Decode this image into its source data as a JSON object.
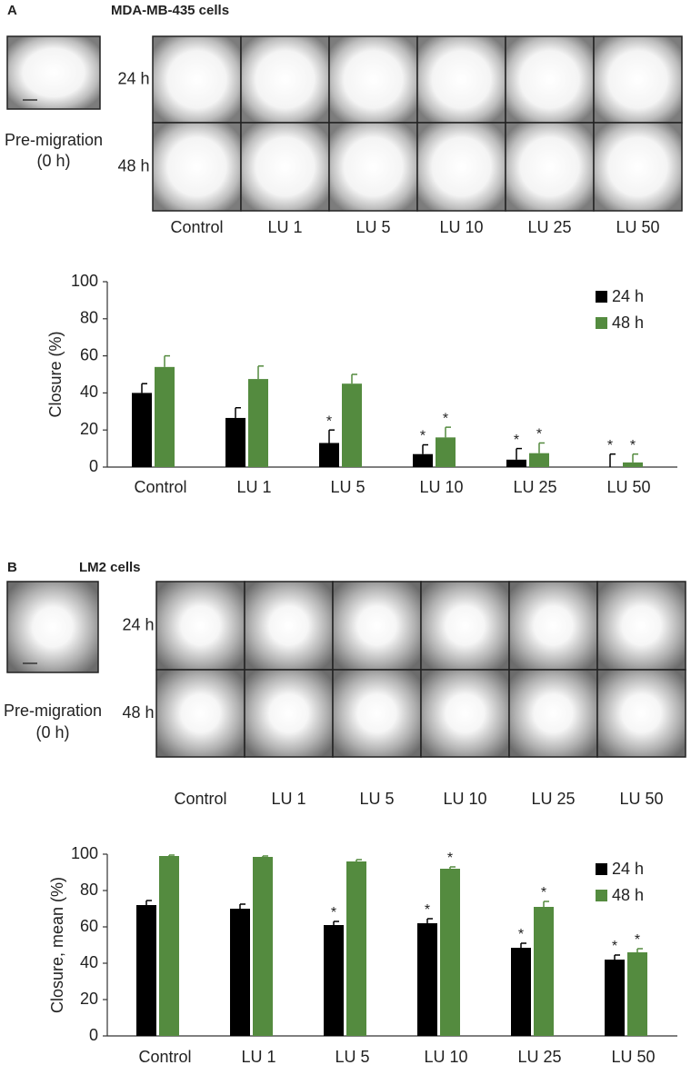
{
  "panels": [
    {
      "label": "A",
      "title": "MDA-MB-435 cells",
      "pre_label": "Pre-migration",
      "pre_time": "(0 h)",
      "row_labels": [
        "24 h",
        "48 h"
      ],
      "column_labels": [
        "Control",
        "LU 1",
        "LU 5",
        "LU 10",
        "LU 25",
        "LU 50"
      ]
    },
    {
      "label": "B",
      "title": "LM2 cells",
      "pre_label": "Pre-migration",
      "pre_time": "(0 h)",
      "row_labels": [
        "24 h",
        "48 h"
      ],
      "column_labels": [
        "Control",
        "LU 1",
        "LU 5",
        "LU 10",
        "LU 25",
        "LU 50"
      ]
    }
  ],
  "chart_data": [
    {
      "type": "bar",
      "y_label": "Closure (%)",
      "categories": [
        "Control",
        "LU 1",
        "LU 5",
        "LU 10",
        "LU 25",
        "LU 50"
      ],
      "series": [
        {
          "name": "24 h",
          "color": "#000000",
          "values": [
            40,
            26.5,
            13,
            7,
            4,
            0
          ],
          "errors": [
            5,
            5.5,
            7,
            5,
            6,
            7
          ]
        },
        {
          "name": "48 h",
          "color": "#548b3f",
          "values": [
            54,
            47.5,
            45,
            16,
            7.5,
            2.5
          ],
          "errors": [
            6,
            7,
            5,
            5.5,
            5.5,
            4.5
          ]
        }
      ],
      "ylim": [
        0,
        100
      ],
      "yticks": [
        0,
        20,
        40,
        60,
        80,
        100
      ],
      "legend": "upper right",
      "annotations": [
        {
          "text": "*",
          "category": "LU 5",
          "series": "24 h"
        },
        {
          "text": "*",
          "category": "LU 10",
          "series": "24 h"
        },
        {
          "text": "*",
          "category": "LU 10",
          "series": "48 h"
        },
        {
          "text": "*",
          "category": "LU 25",
          "series": "24 h"
        },
        {
          "text": "*",
          "category": "LU 25",
          "series": "48 h"
        },
        {
          "text": "*",
          "category": "LU 50",
          "series": "24 h"
        },
        {
          "text": "*",
          "category": "LU 50",
          "series": "48 h"
        }
      ]
    },
    {
      "type": "bar",
      "y_label": "Closure, mean (%)",
      "categories": [
        "Control",
        "LU 1",
        "LU 5",
        "LU 10",
        "LU 25",
        "LU 50"
      ],
      "series": [
        {
          "name": "24 h",
          "color": "#000000",
          "values": [
            72,
            70,
            61,
            62,
            48.5,
            42
          ],
          "errors": [
            2.5,
            2.5,
            2,
            2.5,
            2.5,
            2.5
          ]
        },
        {
          "name": "48 h",
          "color": "#548b3f",
          "values": [
            99,
            98.5,
            96,
            92,
            71,
            46
          ],
          "errors": [
            0.5,
            0.5,
            1,
            1,
            3,
            2
          ]
        }
      ],
      "ylim": [
        0,
        100
      ],
      "yticks": [
        0,
        20,
        40,
        60,
        80,
        100
      ],
      "legend": "upper right",
      "annotations": [
        {
          "text": "*",
          "category": "LU 5",
          "series": "24 h"
        },
        {
          "text": "*",
          "category": "LU 10",
          "series": "24 h"
        },
        {
          "text": "*",
          "category": "LU 10",
          "series": "48 h"
        },
        {
          "text": "*",
          "category": "LU 25",
          "series": "24 h"
        },
        {
          "text": "*",
          "category": "LU 25",
          "series": "48 h"
        },
        {
          "text": "*",
          "category": "LU 50",
          "series": "24 h"
        },
        {
          "text": "*",
          "category": "LU 50",
          "series": "48 h"
        }
      ]
    }
  ]
}
